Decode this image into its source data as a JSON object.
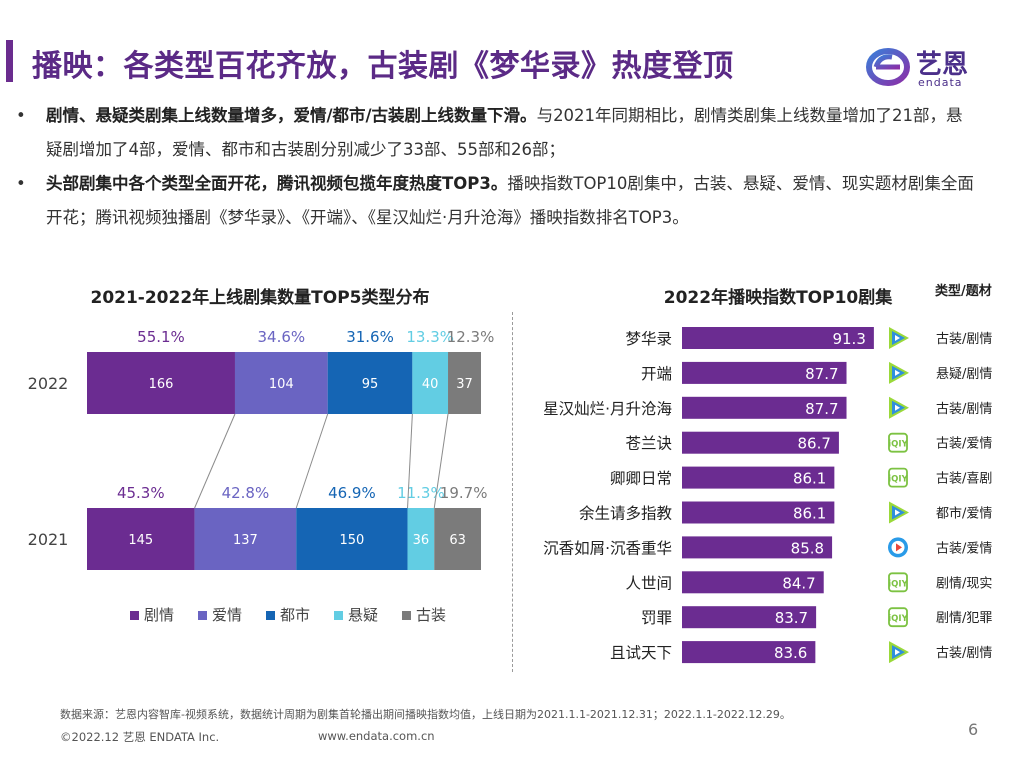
{
  "page": {
    "title": "播映：各类型百花齐放，古装剧《梦华录》热度登顶",
    "page_number": "6"
  },
  "logo": {
    "cn": "艺恩",
    "en": "endata"
  },
  "bullets": [
    {
      "dot": "•",
      "bold": "剧情、悬疑类剧集上线数量增多，爱情/都市/古装剧上线数量下滑。",
      "text": "与2021年同期相比，剧情类剧集上线数量增加了21部，悬疑剧增加了4部，爱情、都市和古装剧分别减少了33部、55部和26部；"
    },
    {
      "dot": "•",
      "bold": "头部剧集中各个类型全面开花，腾讯视频包揽年度热度TOP3。",
      "text": "播映指数TOP10剧集中，古装、悬疑、爱情、现实题材剧集全面开花；腾讯视频独播剧《梦华录》、《开端》、《星汉灿烂·月升沧海》播映指数排名TOP3。"
    }
  ],
  "chart_data": [
    {
      "type": "bar",
      "orientation": "horizontal",
      "stacked": true,
      "title": "2021-2022年上线剧集数量TOP5类型分布",
      "categories": [
        "2022",
        "2021"
      ],
      "series": [
        {
          "name": "剧情",
          "color": "#6b2c91",
          "values": [
            166,
            145
          ],
          "pct_labels": [
            "55.1%",
            "45.3%"
          ]
        },
        {
          "name": "爱情",
          "color": "#6a64c2",
          "values": [
            104,
            137
          ],
          "pct_labels": [
            "34.6%",
            "42.8%"
          ]
        },
        {
          "name": "都市",
          "color": "#1565b4",
          "values": [
            95,
            150
          ],
          "pct_labels": [
            "31.6%",
            "46.9%"
          ]
        },
        {
          "name": "悬疑",
          "color": "#62cde3",
          "values": [
            40,
            36
          ],
          "pct_labels": [
            "13.3%",
            "11.3%"
          ]
        },
        {
          "name": "古装",
          "color": "#7b7b7b",
          "values": [
            37,
            63
          ],
          "pct_labels": [
            "12.3%",
            "19.7%"
          ]
        }
      ],
      "legend": "bottom"
    },
    {
      "type": "bar",
      "orientation": "horizontal",
      "title": "2022年播映指数TOP10剧集",
      "column_header": "类型/题材",
      "bar_color": "#6b2c91",
      "xlim": [
        0,
        100
      ],
      "items": [
        {
          "name": "梦华录",
          "value": 91.3,
          "label": "91.3",
          "platform_icon": "tencent-video-icon",
          "genre": "古装/剧情"
        },
        {
          "name": "开端",
          "value": 87.7,
          "label": "87.7",
          "platform_icon": "tencent-video-icon",
          "genre": "悬疑/剧情"
        },
        {
          "name": "星汉灿烂·月升沧海",
          "value": 87.7,
          "label": "87.7",
          "platform_icon": "tencent-video-icon",
          "genre": "古装/剧情"
        },
        {
          "name": "苍兰诀",
          "value": 86.7,
          "label": "86.7",
          "platform_icon": "iqiyi-icon",
          "genre": "古装/爱情"
        },
        {
          "name": "卿卿日常",
          "value": 86.1,
          "label": "86.1",
          "platform_icon": "iqiyi-icon",
          "genre": "古装/喜剧"
        },
        {
          "name": "余生请多指教",
          "value": 86.1,
          "label": "86.1",
          "platform_icon": "tencent-video-icon",
          "genre": "都市/爱情"
        },
        {
          "name": "沉香如屑·沉香重华",
          "value": 85.8,
          "label": "85.8",
          "platform_icon": "youku-icon",
          "genre": "古装/爱情"
        },
        {
          "name": "人世间",
          "value": 84.7,
          "label": "84.7",
          "platform_icon": "iqiyi-icon",
          "genre": "剧情/现实"
        },
        {
          "name": "罚罪",
          "value": 83.7,
          "label": "83.7",
          "platform_icon": "iqiyi-icon",
          "genre": "剧情/犯罪"
        },
        {
          "name": "且试天下",
          "value": 83.6,
          "label": "83.6",
          "platform_icon": "tencent-video-icon",
          "genre": "古装/剧情"
        }
      ]
    }
  ],
  "footer": {
    "source": "数据来源：艺恩内容智库-视频系统，数据统计周期为剧集首轮播出期间播映指数均值，上线日期为2021.1.1-2021.12.31；2022.1.1-2022.12.29。",
    "copyright": "©2022.12 艺恩 ENDATA Inc.",
    "website": "www.endata.com.cn"
  },
  "colors": {
    "title": "#5b2a86",
    "accent": "#6b2c91",
    "iqiyi": "#7cc242",
    "tencent_blue": "#2f8fdd",
    "tencent_green": "#9ad93a",
    "youku": "#2a9be8"
  }
}
